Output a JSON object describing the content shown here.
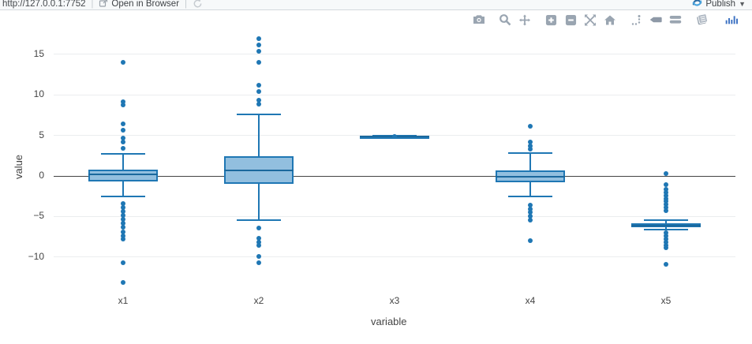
{
  "browser_bar": {
    "url": "http://127.0.0.1:7752",
    "open_in_browser_label": "Open in Browser",
    "publish_label": "Publish",
    "separator": "|"
  },
  "modebar": {
    "icons": [
      "camera-icon",
      "zoom-icon",
      "pan-icon",
      "zoom-in-icon",
      "zoom-out-icon",
      "autoscale-icon",
      "reset-axes-icon",
      "spikelines-icon",
      "hover-closest-icon",
      "hover-compare-icon",
      "chart-studio-icon",
      "plotly-logo-icon"
    ]
  },
  "chart_data": {
    "type": "box",
    "title": "",
    "xlabel": "variable",
    "ylabel": "value",
    "categories": [
      "x1",
      "x2",
      "x3",
      "x4",
      "x5"
    ],
    "yticks": [
      15,
      10,
      5,
      0,
      -5,
      -10
    ],
    "ylim": [
      -14.3,
      17.3
    ],
    "grid": true,
    "legend": false,
    "colors": {
      "box_fill": "#92bfdf",
      "box_line": "#1f77b4",
      "outlier": "#1f77b4",
      "zero_line": "#444444",
      "grid_line": "#ebedef"
    },
    "series": [
      {
        "name": "x1",
        "q1": -0.72,
        "median": 0.19,
        "q3": 0.74,
        "whisker_low": -2.57,
        "whisker_high": 2.73,
        "outliers": [
          14.0,
          9.2,
          8.8,
          6.4,
          5.6,
          4.7,
          4.2,
          3.4,
          -3.4,
          -3.9,
          -4.4,
          -4.9,
          -5.4,
          -5.8,
          -6.3,
          -6.9,
          -7.4,
          -7.8,
          -10.7,
          -13.1
        ]
      },
      {
        "name": "x2",
        "q1": -0.97,
        "median": 0.64,
        "q3": 2.43,
        "whisker_low": -5.45,
        "whisker_high": 7.63,
        "outliers": [
          16.9,
          16.2,
          15.4,
          14.0,
          11.2,
          10.4,
          9.3,
          8.9,
          -6.4,
          -7.7,
          -8.2,
          -8.6,
          -9.9,
          -10.7
        ]
      },
      {
        "name": "x3",
        "q1": 4.83,
        "median": 4.88,
        "q3": 4.92,
        "whisker_low": 4.78,
        "whisker_high": 4.97,
        "outliers": [
          4.88
        ]
      },
      {
        "name": "x4",
        "q1": -0.75,
        "median": -0.07,
        "q3": 0.64,
        "whisker_low": -2.5,
        "whisker_high": 2.82,
        "outliers": [
          6.1,
          4.2,
          3.7,
          3.3,
          -3.6,
          -4.1,
          -4.5,
          -5.0,
          -5.5,
          -8.0
        ]
      },
      {
        "name": "x5",
        "q1": -6.35,
        "median": -6.1,
        "q3": -5.85,
        "whisker_low": -6.65,
        "whisker_high": -5.45,
        "outliers": [
          0.3,
          -1.1,
          -1.7,
          -2.0,
          -2.4,
          -2.8,
          -3.1,
          -3.5,
          -3.9,
          -4.3,
          -7.0,
          -7.4,
          -7.8,
          -8.2,
          -8.6,
          -8.9,
          -10.9
        ]
      }
    ]
  }
}
